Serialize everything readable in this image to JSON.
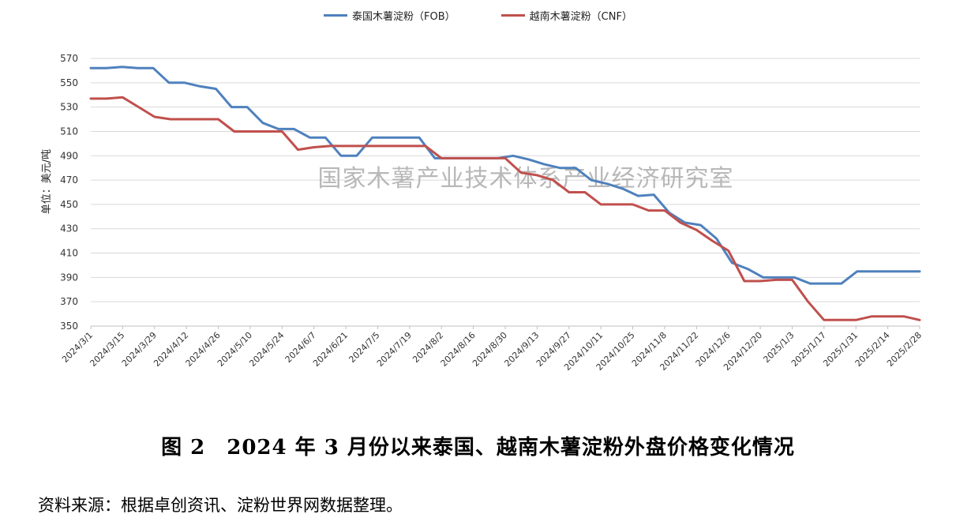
{
  "chart_data": {
    "type": "line",
    "ylabel": "单位：美元/吨",
    "ylim": [
      350,
      570
    ],
    "yticks": [
      350,
      370,
      390,
      410,
      430,
      450,
      470,
      490,
      510,
      530,
      550,
      570
    ],
    "grid": "horizontal",
    "legend_placement": "top-center",
    "xtick_labels": [
      "2024/3/1",
      "2024/3/15",
      "2024/3/29",
      "2024/4/12",
      "2024/4/26",
      "2024/5/10",
      "2024/5/24",
      "2024/6/7",
      "2024/6/21",
      "2024/7/5",
      "2024/7/19",
      "2024/8/2",
      "2024/8/16",
      "2024/8/30",
      "2024/9/13",
      "2024/9/27",
      "2024/10/11",
      "2024/10/25",
      "2024/11/8",
      "2024/11/22",
      "2024/12/6",
      "2024/12/20",
      "2025/1/3",
      "2025/1/17",
      "2025/1/31",
      "2025/2/14",
      "2025/2/28"
    ],
    "series": [
      {
        "name": "泰国木薯淀粉（FOB）",
        "color": "#4F81BD",
        "values": [
          562,
          562,
          563,
          562,
          562,
          550,
          550,
          547,
          545,
          530,
          530,
          517,
          512,
          512,
          505,
          505,
          490,
          490,
          505,
          505,
          505,
          505,
          488,
          488,
          488,
          488,
          488,
          490,
          487,
          483,
          480,
          480,
          470,
          467,
          463,
          457,
          458,
          443,
          435,
          433,
          422,
          402,
          397,
          390,
          390,
          390,
          385,
          385,
          385,
          395,
          395,
          395,
          395,
          395
        ]
      },
      {
        "name": "越南木薯淀粉（CNF）",
        "color": "#C0504D",
        "values": [
          537,
          537,
          538,
          530,
          522,
          520,
          520,
          520,
          520,
          510,
          510,
          510,
          510,
          495,
          497,
          498,
          498,
          498,
          498,
          498,
          498,
          498,
          488,
          488,
          488,
          488,
          488,
          476,
          474,
          470,
          460,
          460,
          450,
          450,
          450,
          445,
          445,
          435,
          429,
          420,
          412,
          387,
          387,
          388,
          388,
          370,
          355,
          355,
          355,
          358,
          358,
          358,
          355
        ]
      }
    ]
  },
  "watermark": "国家木薯产业技术体系产业经济研究室",
  "caption": "图 2　2024 年 3 月份以来泰国、越南木薯淀粉外盘价格变化情况",
  "source": "资料来源：根据卓创资讯、淀粉世界网数据整理。"
}
